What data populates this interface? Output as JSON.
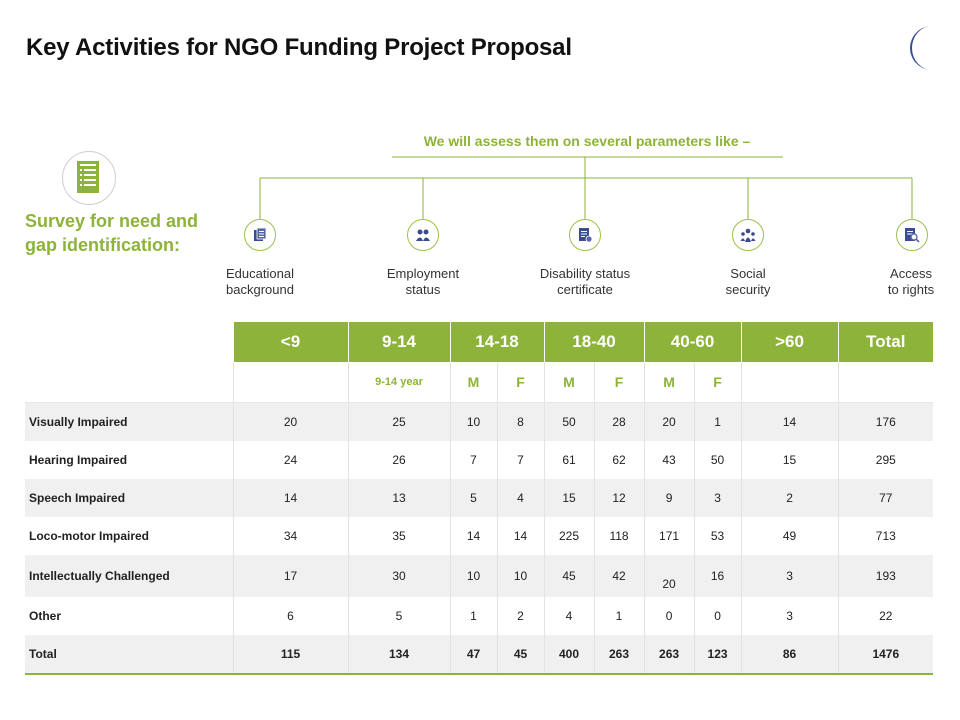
{
  "title": "Key Activities for NGO Funding Project Proposal",
  "survey": {
    "heading": "Survey for need and gap identification:",
    "icon": "document-icon"
  },
  "assess_heading": "We will assess them on several parameters like –",
  "parameters": [
    {
      "label_line1": "Educational",
      "label_line2": "background",
      "icon": "documents-icon"
    },
    {
      "label_line1": "Employment",
      "label_line2": "status",
      "icon": "people-icon"
    },
    {
      "label_line1": "Disability status",
      "label_line2": "certificate",
      "icon": "certificate-icon"
    },
    {
      "label_line1": "Social",
      "label_line2": "security",
      "icon": "group-icon"
    },
    {
      "label_line1": "Access",
      "label_line2": "to rights",
      "icon": "search-document-icon"
    }
  ],
  "colors": {
    "accent": "#8db33a",
    "row_shade": "#f0f0f0",
    "moon": "#3a4c8f"
  },
  "table": {
    "header": [
      "<9",
      "9-14",
      "14-18",
      "18-40",
      "40-60",
      ">60",
      "Total"
    ],
    "subheader": [
      "",
      "9-14 year",
      "M",
      "F",
      "M",
      "F",
      "M",
      "F",
      "",
      ""
    ],
    "rows": [
      {
        "label": "Visually Impaired",
        "values": [
          "20",
          "25",
          "10",
          "8",
          "50",
          "28",
          "20",
          "1",
          "14",
          "176"
        ]
      },
      {
        "label": "Hearing Impaired",
        "values": [
          "24",
          "26",
          "7",
          "7",
          "61",
          "62",
          "43",
          "50",
          "15",
          "295"
        ]
      },
      {
        "label": "Speech Impaired",
        "values": [
          "14",
          "13",
          "5",
          "4",
          "15",
          "12",
          "9",
          "3",
          "2",
          "77"
        ]
      },
      {
        "label": "Loco-motor  Impaired",
        "values": [
          "34",
          "35",
          "14",
          "14",
          "225",
          "118",
          "171",
          "53",
          "49",
          "713"
        ]
      },
      {
        "label": "Intellectually Challenged",
        "values": [
          "17",
          "30",
          "10",
          "10",
          "45",
          "42",
          "20",
          "16",
          "3",
          "193"
        ]
      },
      {
        "label": "Other",
        "values": [
          "6",
          "5",
          "1",
          "2",
          "4",
          "1",
          "0",
          "0",
          "3",
          "22"
        ]
      },
      {
        "label": "Total",
        "values": [
          "115",
          "134",
          "47",
          "45",
          "400",
          "263",
          "263",
          "123",
          "86",
          "1476"
        ]
      }
    ]
  }
}
